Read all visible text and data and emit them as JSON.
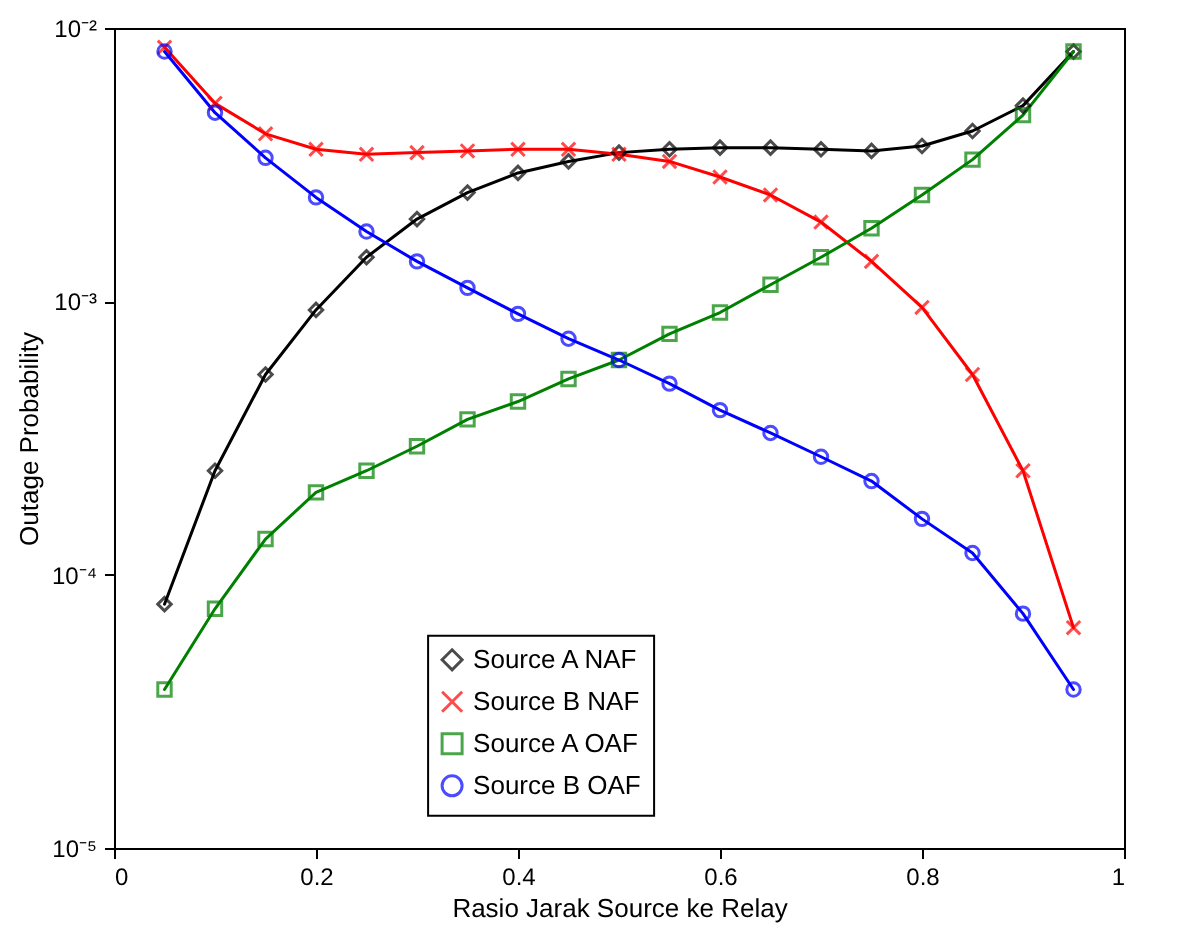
{
  "chart_data": {
    "type": "line",
    "xlabel": "Rasio Jarak Source ke Relay",
    "ylabel": "Outage Probability",
    "x": [
      0.05,
      0.1,
      0.15,
      0.2,
      0.25,
      0.3,
      0.35,
      0.4,
      0.45,
      0.5,
      0.55,
      0.6,
      0.65,
      0.7,
      0.75,
      0.8,
      0.85,
      0.9,
      0.95
    ],
    "series": [
      {
        "name": "Source A NAF",
        "color": "#000000",
        "marker": "diamond",
        "values": [
          7.8e-05,
          0.00024,
          0.00054,
          0.00093,
          0.00145,
          0.002,
          0.0025,
          0.00295,
          0.00325,
          0.0035,
          0.0036,
          0.00365,
          0.00365,
          0.0036,
          0.00355,
          0.0037,
          0.0042,
          0.0052,
          0.0082
        ]
      },
      {
        "name": "Source B NAF",
        "color": "#ff0000",
        "marker": "cross",
        "values": [
          0.0085,
          0.0053,
          0.0041,
          0.0036,
          0.00345,
          0.0035,
          0.00355,
          0.0036,
          0.0036,
          0.00345,
          0.00325,
          0.00285,
          0.00245,
          0.00195,
          0.0014,
          0.00095,
          0.00054,
          0.00024,
          6.4e-05
        ]
      },
      {
        "name": "Source A OAF",
        "color": "#008000",
        "marker": "square",
        "values": [
          3.8e-05,
          7.5e-05,
          0.000135,
          0.0002,
          0.00024,
          0.000295,
          0.00037,
          0.00043,
          0.00052,
          0.00061,
          0.00076,
          0.00091,
          0.00115,
          0.00145,
          0.00185,
          0.00245,
          0.0033,
          0.0048,
          0.0082
        ]
      },
      {
        "name": "Source B OAF",
        "color": "#0000ff",
        "marker": "circle",
        "values": [
          0.0082,
          0.0049,
          0.00335,
          0.0024,
          0.0018,
          0.0014,
          0.00112,
          0.0009,
          0.00073,
          0.00061,
          0.0005,
          0.0004,
          0.00033,
          0.00027,
          0.00022,
          0.00016,
          0.00012,
          7.2e-05,
          3.8e-05
        ]
      }
    ],
    "xlim": [
      0,
      1
    ],
    "xticks": [
      0,
      0.2,
      0.4,
      0.6,
      0.8,
      1
    ],
    "ylim": [
      1e-05,
      0.01
    ],
    "yticks": [
      {
        "value": 1e-05,
        "label": "10⁻⁵"
      },
      {
        "value": 0.0001,
        "label": "10⁻⁴"
      },
      {
        "value": 0.001,
        "label": "10⁻³"
      },
      {
        "value": 0.01,
        "label": "10⁻²"
      }
    ],
    "log": "y",
    "grid": false,
    "legend": "bottom",
    "line_style": "solid"
  }
}
